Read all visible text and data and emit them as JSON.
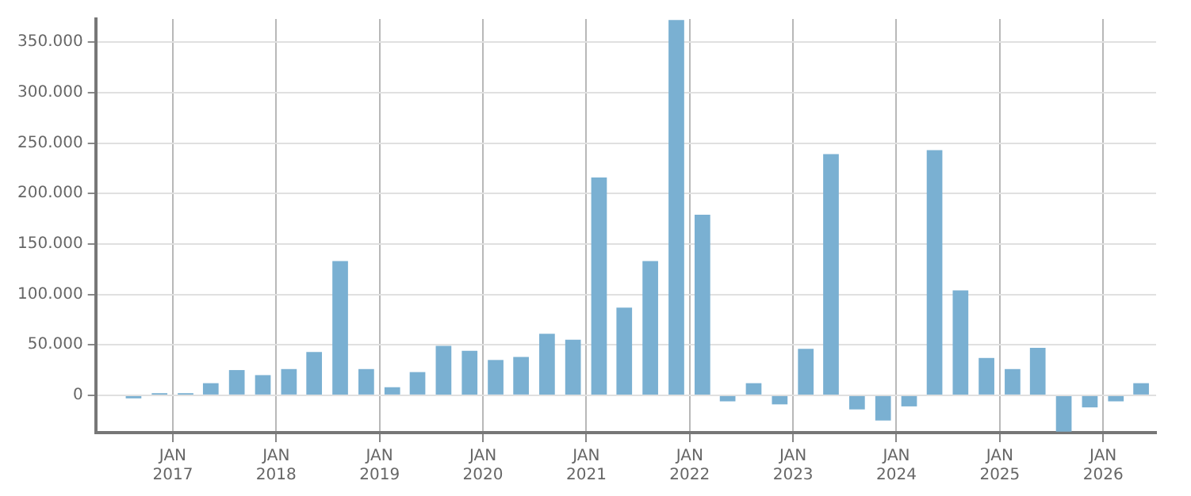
{
  "chart_data": {
    "type": "bar",
    "x": [
      "2016-08-15",
      "2016-11-15",
      "2017-02-15",
      "2017-05-15",
      "2017-08-15",
      "2017-11-15",
      "2018-02-15",
      "2018-05-15",
      "2018-08-15",
      "2018-11-15",
      "2019-02-15",
      "2019-05-15",
      "2019-08-15",
      "2019-11-15",
      "2020-02-15",
      "2020-05-15",
      "2020-08-15",
      "2020-11-15",
      "2021-02-15",
      "2021-05-15",
      "2021-08-15",
      "2021-11-15",
      "2022-02-15",
      "2022-05-15",
      "2022-08-15",
      "2022-11-15",
      "2023-02-15",
      "2023-05-15",
      "2023-08-15",
      "2023-11-15",
      "2024-02-15",
      "2024-05-15",
      "2024-08-15",
      "2024-11-15",
      "2025-02-15",
      "2025-05-15",
      "2025-08-15",
      "2025-11-15",
      "2026-02-15",
      "2026-05-15"
    ],
    "series": [
      {
        "color": "#7ab0d2",
        "values": [
          -3000,
          2000,
          2000,
          12000,
          25000,
          20000,
          26000,
          43000,
          133000,
          26000,
          8000,
          23000,
          49000,
          44000,
          35000,
          38000,
          61000,
          55000,
          216000,
          87000,
          133000,
          372000,
          179000,
          -6000,
          12000,
          -9000,
          46000,
          239000,
          -14000,
          -25000,
          -11000,
          243000,
          104000,
          37000,
          26000,
          47000,
          -36000,
          -12000,
          -6000,
          12000
        ]
      }
    ],
    "xlim": [
      "2016-04-03",
      "2026-07-07"
    ],
    "xticks": [
      {
        "value": "2017-01-01",
        "label": "JAN\n2017"
      },
      {
        "value": "2018-01-01",
        "label": "JAN\n2018"
      },
      {
        "value": "2019-01-01",
        "label": "JAN\n2019"
      },
      {
        "value": "2020-01-01",
        "label": "JAN\n2020"
      },
      {
        "value": "2021-01-01",
        "label": "JAN\n2021"
      },
      {
        "value": "2022-01-01",
        "label": "JAN\n2022"
      },
      {
        "value": "2023-01-01",
        "label": "JAN\n2023"
      },
      {
        "value": "2024-01-01",
        "label": "JAN\n2024"
      },
      {
        "value": "2025-01-01",
        "label": "JAN\n2025"
      },
      {
        "value": "2026-01-01",
        "label": "JAN\n2026"
      }
    ],
    "ylim": [
      -37000,
      373000
    ],
    "yticks": [
      0,
      {
        "value": 50000,
        "label": "50.000"
      },
      {
        "value": 100000,
        "label": "100.000"
      },
      {
        "value": 150000,
        "label": "150.000"
      },
      {
        "value": 200000,
        "label": "200.000"
      },
      {
        "value": 250000,
        "label": "250.000"
      },
      {
        "value": 300000,
        "label": "300.000"
      },
      {
        "value": 350000,
        "label": "350.000"
      }
    ],
    "grid": true
  }
}
